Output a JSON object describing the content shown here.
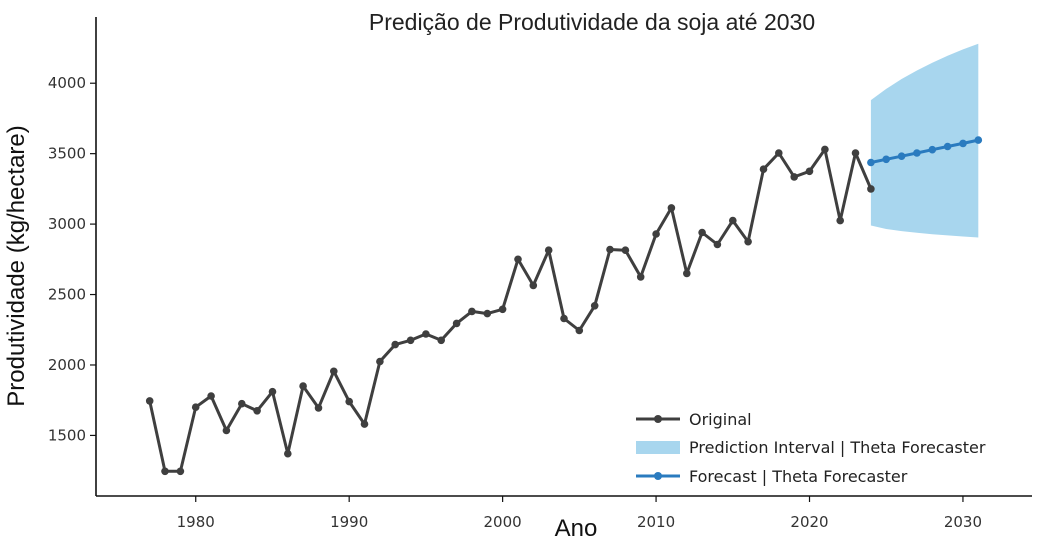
{
  "chart_data": {
    "type": "line",
    "title": "Predição de Produtividade da soja até 2030",
    "xlabel": "Ano",
    "ylabel": "Produtividade (kg/hectare)",
    "xlim": [
      1973.5,
      2034.5
    ],
    "ylim": [
      1070,
      4470
    ],
    "x_ticks": [
      1980,
      1990,
      2000,
      2010,
      2020,
      2030
    ],
    "y_ticks": [
      1500,
      2000,
      2500,
      3000,
      3500,
      4000
    ],
    "grid": false,
    "legend_position": "bottom-right",
    "series": [
      {
        "name": "Original",
        "color": "#3f3f3f",
        "x": [
          1977,
          1978,
          1979,
          1980,
          1981,
          1982,
          1983,
          1984,
          1985,
          1986,
          1987,
          1988,
          1989,
          1990,
          1991,
          1992,
          1993,
          1994,
          1995,
          1996,
          1997,
          1998,
          1999,
          2000,
          2001,
          2002,
          2003,
          2004,
          2005,
          2006,
          2007,
          2008,
          2009,
          2010,
          2011,
          2012,
          2013,
          2014,
          2015,
          2016,
          2017,
          2018,
          2019,
          2020,
          2021,
          2022,
          2023,
          2024
        ],
        "y": [
          1745,
          1245,
          1245,
          1700,
          1780,
          1535,
          1725,
          1675,
          1810,
          1370,
          1850,
          1695,
          1955,
          1740,
          1580,
          2025,
          2145,
          2175,
          2220,
          2175,
          2295,
          2380,
          2365,
          2395,
          2750,
          2565,
          2815,
          2330,
          2245,
          2420,
          2820,
          2815,
          2625,
          2930,
          3115,
          2650,
          2940,
          2855,
          3025,
          2875,
          3390,
          3505,
          3335,
          3375,
          3530,
          3025,
          3505,
          3250
        ]
      },
      {
        "name": "Forecast | Theta Forecaster",
        "color": "#2a7bbf",
        "x": [
          2024,
          2025,
          2026,
          2027,
          2028,
          2029,
          2030,
          2031
        ],
        "y": [
          3437,
          3460,
          3482,
          3505,
          3528,
          3551,
          3573,
          3596
        ]
      }
    ],
    "prediction_interval": {
      "name": "Prediction Interval | Theta Forecaster",
      "color": "#a8d6ee",
      "x": [
        2024,
        2025,
        2026,
        2027,
        2028,
        2029,
        2030,
        2031
      ],
      "lower": [
        2990,
        2965,
        2950,
        2938,
        2928,
        2920,
        2912,
        2905
      ],
      "upper": [
        3880,
        3960,
        4030,
        4090,
        4145,
        4195,
        4240,
        4280
      ]
    }
  }
}
